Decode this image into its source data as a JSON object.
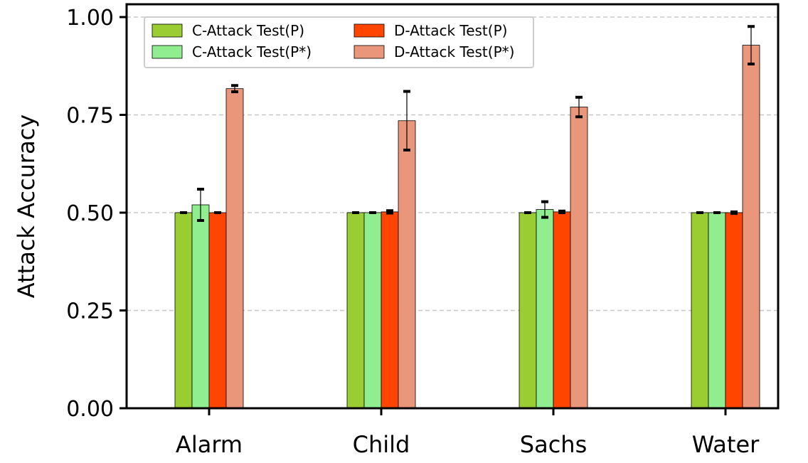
{
  "chart_data": {
    "type": "bar",
    "title": "",
    "xlabel": "",
    "ylabel": "Attack Accuracy",
    "ylim": [
      0,
      1.0
    ],
    "yticks": [
      "0.00",
      "0.25",
      "0.50",
      "0.75",
      "1.00"
    ],
    "ytick_values": [
      0,
      0.25,
      0.5,
      0.75,
      1.0
    ],
    "grid": "horizontal dashed",
    "legend_position": "top-left",
    "categories": [
      "Alarm",
      "Child",
      "Sachs",
      "Water"
    ],
    "series": [
      {
        "name": "C-Attack Test(P)",
        "color": "#9acd32",
        "values": [
          0.5,
          0.5,
          0.5,
          0.5
        ],
        "errors": [
          0.0,
          0.0,
          0.0,
          0.0
        ]
      },
      {
        "name": "C-Attack Test(P*)",
        "color": "#90ee90",
        "values": [
          0.52,
          0.5,
          0.508,
          0.5
        ],
        "errors": [
          0.04,
          0.0,
          0.02,
          0.0
        ]
      },
      {
        "name": "D-Attack Test(P)",
        "color": "#ff4500",
        "values": [
          0.5,
          0.502,
          0.502,
          0.5
        ],
        "errors": [
          0.0,
          0.003,
          0.002,
          0.002
        ]
      },
      {
        "name": "D-Attack Test(P*)",
        "color": "#e9967a",
        "values": [
          0.817,
          0.735,
          0.77,
          0.928
        ],
        "errors": [
          0.008,
          0.075,
          0.025,
          0.048
        ]
      }
    ]
  }
}
